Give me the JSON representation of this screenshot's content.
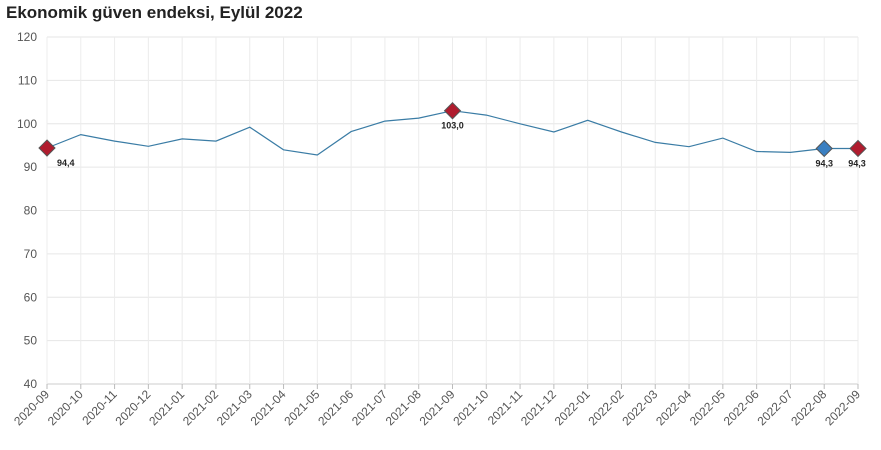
{
  "chart_data": {
    "type": "line",
    "title": "Ekonomik güven endeksi, Eylül 2022",
    "xlabel": "",
    "ylabel": "",
    "ylim": [
      40,
      120
    ],
    "yticks": [
      40,
      50,
      60,
      70,
      80,
      90,
      100,
      110,
      120
    ],
    "grid": true,
    "categories": [
      "2020-09",
      "2020-10",
      "2020-11",
      "2020-12",
      "2021-01",
      "2021-02",
      "2021-03",
      "2021-04",
      "2021-05",
      "2021-06",
      "2021-07",
      "2021-08",
      "2021-09",
      "2021-10",
      "2021-11",
      "2021-12",
      "2022-01",
      "2022-02",
      "2022-03",
      "2022-04",
      "2022-05",
      "2022-06",
      "2022-07",
      "2022-08",
      "2022-09"
    ],
    "series": [
      {
        "values": [
          94.4,
          97.5,
          96.0,
          94.8,
          96.5,
          96.0,
          99.2,
          94.0,
          92.8,
          98.2,
          100.6,
          101.3,
          103.0,
          102.0,
          100.0,
          98.1,
          100.8,
          98.1,
          95.7,
          94.7,
          96.7,
          93.6,
          93.4,
          94.3,
          94.3
        ],
        "color": "#3a7ca5"
      }
    ],
    "highlights": [
      {
        "index": 0,
        "label": "94,4",
        "color": "#b01c2e"
      },
      {
        "index": 12,
        "label": "103,0",
        "color": "#b01c2e"
      },
      {
        "index": 23,
        "label": "94,3",
        "color": "#3a7fc1"
      },
      {
        "index": 24,
        "label": "94,3",
        "color": "#b01c2e"
      }
    ]
  }
}
